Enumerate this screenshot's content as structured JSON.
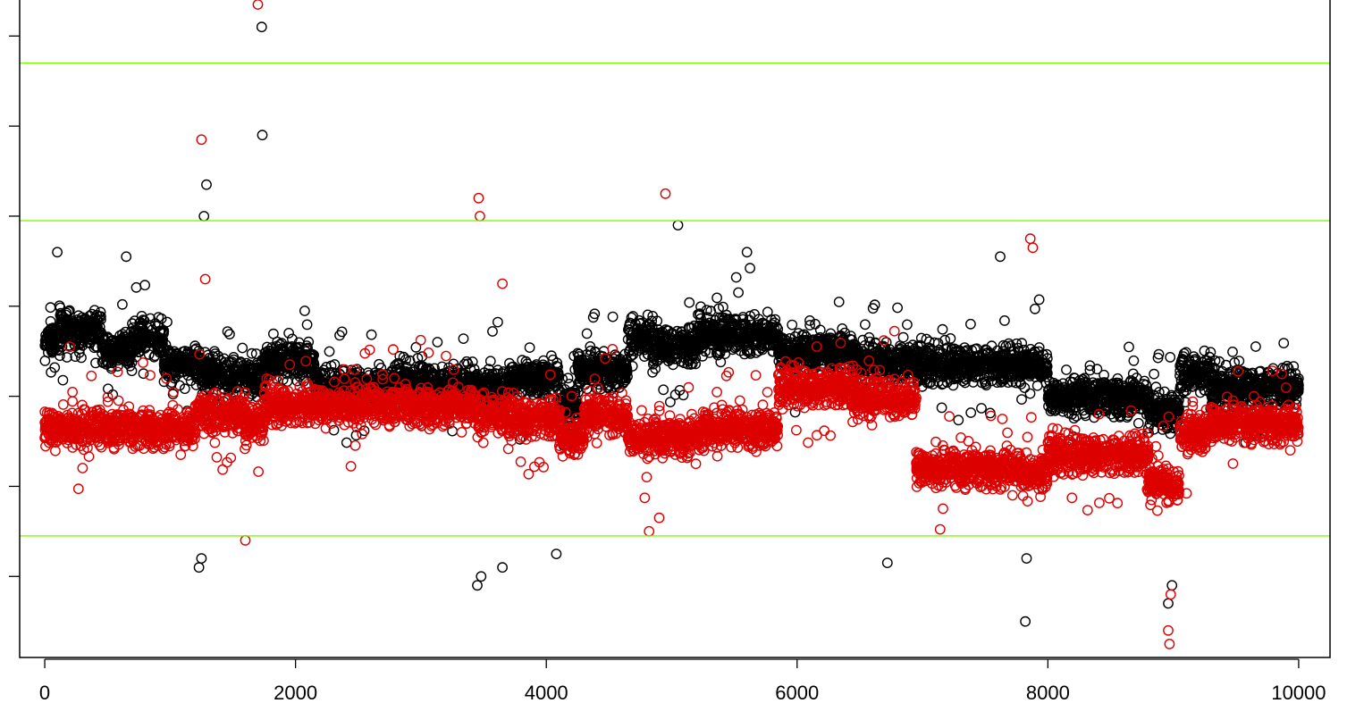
{
  "chart_data": {
    "type": "scatter",
    "title": "",
    "xlabel": "",
    "ylabel": "",
    "xlim": [
      -200,
      10250
    ],
    "ylim": [
      -2.9,
      4.4
    ],
    "x_ticks": [
      0,
      2000,
      4000,
      6000,
      8000,
      10000
    ],
    "x_tick_labels": [
      "0",
      "2000",
      "4000",
      "6000",
      "8000",
      "10000"
    ],
    "y_ticks": [
      -2,
      -1,
      0,
      1,
      2,
      3,
      4
    ],
    "y_tick_labels_shown": false,
    "grid": false,
    "legend": "none",
    "reference_lines": [
      {
        "axis": "y",
        "value": 3.7,
        "color": "#7CFC00"
      },
      {
        "axis": "y",
        "value": 1.95,
        "color": "#7CFC00"
      },
      {
        "axis": "y",
        "value": -1.55,
        "color": "#7CFC00"
      }
    ],
    "n_points": 10000,
    "series": [
      {
        "color": "#000000",
        "segments": [
          {
            "x": [
              0,
              120
            ],
            "y": 0.6
          },
          {
            "x": [
              120,
              450
            ],
            "y": 0.75
          },
          {
            "x": [
              450,
              700
            ],
            "y": 0.5
          },
          {
            "x": [
              700,
              950
            ],
            "y": 0.65
          },
          {
            "x": [
              950,
              1250
            ],
            "y": 0.35
          },
          {
            "x": [
              1250,
              1550
            ],
            "y": 0.25
          },
          {
            "x": [
              1550,
              1750
            ],
            "y": 0.2
          },
          {
            "x": [
              1750,
              2150
            ],
            "y": 0.4
          },
          {
            "x": [
              2150,
              2800
            ],
            "y": 0.1
          },
          {
            "x": [
              2800,
              3450
            ],
            "y": 0.15
          },
          {
            "x": [
              3450,
              3700
            ],
            "y": 0.1
          },
          {
            "x": [
              3700,
              4100
            ],
            "y": 0.2
          },
          {
            "x": [
              4100,
              4250
            ],
            "y": -0.1
          },
          {
            "x": [
              4250,
              4650
            ],
            "y": 0.3
          },
          {
            "x": [
              4650,
              4850
            ],
            "y": 0.65
          },
          {
            "x": [
              4850,
              5200
            ],
            "y": 0.55
          },
          {
            "x": [
              5200,
              5850
            ],
            "y": 0.7
          },
          {
            "x": [
              5850,
              6450
            ],
            "y": 0.5
          },
          {
            "x": [
              6450,
              6950
            ],
            "y": 0.4
          },
          {
            "x": [
              6950,
              7800
            ],
            "y": 0.35
          },
          {
            "x": [
              7800,
              8000
            ],
            "y": 0.35
          },
          {
            "x": [
              8000,
              8800
            ],
            "y": 0.0
          },
          {
            "x": [
              8800,
              9050
            ],
            "y": -0.15
          },
          {
            "x": [
              9050,
              9300
            ],
            "y": 0.25
          },
          {
            "x": [
              9300,
              10000
            ],
            "y": 0.1
          }
        ],
        "outliers": [
          {
            "x": 1730,
            "y": 4.1
          },
          {
            "x": 1735,
            "y": 2.9
          },
          {
            "x": 1290,
            "y": 2.35
          },
          {
            "x": 1270,
            "y": 2.0
          },
          {
            "x": 5050,
            "y": 1.9
          },
          {
            "x": 100,
            "y": 1.6
          },
          {
            "x": 650,
            "y": 1.55
          },
          {
            "x": 5600,
            "y": 1.6
          },
          {
            "x": 7620,
            "y": 1.55
          },
          {
            "x": 1230,
            "y": -1.9
          },
          {
            "x": 1250,
            "y": -1.8
          },
          {
            "x": 3450,
            "y": -2.1
          },
          {
            "x": 3480,
            "y": -2.0
          },
          {
            "x": 3650,
            "y": -1.9
          },
          {
            "x": 4080,
            "y": -1.75
          },
          {
            "x": 6720,
            "y": -1.85
          },
          {
            "x": 7820,
            "y": -2.5
          },
          {
            "x": 7830,
            "y": -1.8
          },
          {
            "x": 8960,
            "y": -2.3
          },
          {
            "x": 8990,
            "y": -2.1
          }
        ]
      },
      {
        "color": "#DD0000",
        "segments": [
          {
            "x": [
              0,
              1200
            ],
            "y": -0.35
          },
          {
            "x": [
              1200,
              1300
            ],
            "y": -0.15
          },
          {
            "x": [
              1300,
              1600
            ],
            "y": -0.2
          },
          {
            "x": [
              1600,
              1750
            ],
            "y": -0.3
          },
          {
            "x": [
              1750,
              2150
            ],
            "y": -0.1
          },
          {
            "x": [
              2150,
              3450
            ],
            "y": -0.1
          },
          {
            "x": [
              3450,
              3700
            ],
            "y": -0.2
          },
          {
            "x": [
              3700,
              4100
            ],
            "y": -0.25
          },
          {
            "x": [
              4100,
              4300
            ],
            "y": -0.45
          },
          {
            "x": [
              4300,
              4650
            ],
            "y": -0.2
          },
          {
            "x": [
              4650,
              5250
            ],
            "y": -0.45
          },
          {
            "x": [
              5250,
              5850
            ],
            "y": -0.35
          },
          {
            "x": [
              5850,
              6450
            ],
            "y": 0.1
          },
          {
            "x": [
              6450,
              6950
            ],
            "y": 0.0
          },
          {
            "x": [
              6950,
              7800
            ],
            "y": -0.8
          },
          {
            "x": [
              7800,
              8000
            ],
            "y": -0.85
          },
          {
            "x": [
              8000,
              8800
            ],
            "y": -0.65
          },
          {
            "x": [
              8800,
              9050
            ],
            "y": -0.95
          },
          {
            "x": [
              9050,
              9300
            ],
            "y": -0.4
          },
          {
            "x": [
              9300,
              10000
            ],
            "y": -0.3
          }
        ],
        "outliers": [
          {
            "x": 1700,
            "y": 4.35
          },
          {
            "x": 1250,
            "y": 2.85
          },
          {
            "x": 4950,
            "y": 2.25
          },
          {
            "x": 3460,
            "y": 2.2
          },
          {
            "x": 3470,
            "y": 2.0
          },
          {
            "x": 7860,
            "y": 1.75
          },
          {
            "x": 7880,
            "y": 1.65
          },
          {
            "x": 1280,
            "y": 1.3
          },
          {
            "x": 3650,
            "y": 1.25
          },
          {
            "x": 200,
            "y": 0.55
          },
          {
            "x": 1600,
            "y": -1.6
          },
          {
            "x": 4820,
            "y": -1.5
          },
          {
            "x": 4900,
            "y": -1.35
          },
          {
            "x": 8970,
            "y": -2.75
          },
          {
            "x": 8960,
            "y": -2.6
          },
          {
            "x": 8980,
            "y": -2.2
          }
        ]
      }
    ]
  }
}
